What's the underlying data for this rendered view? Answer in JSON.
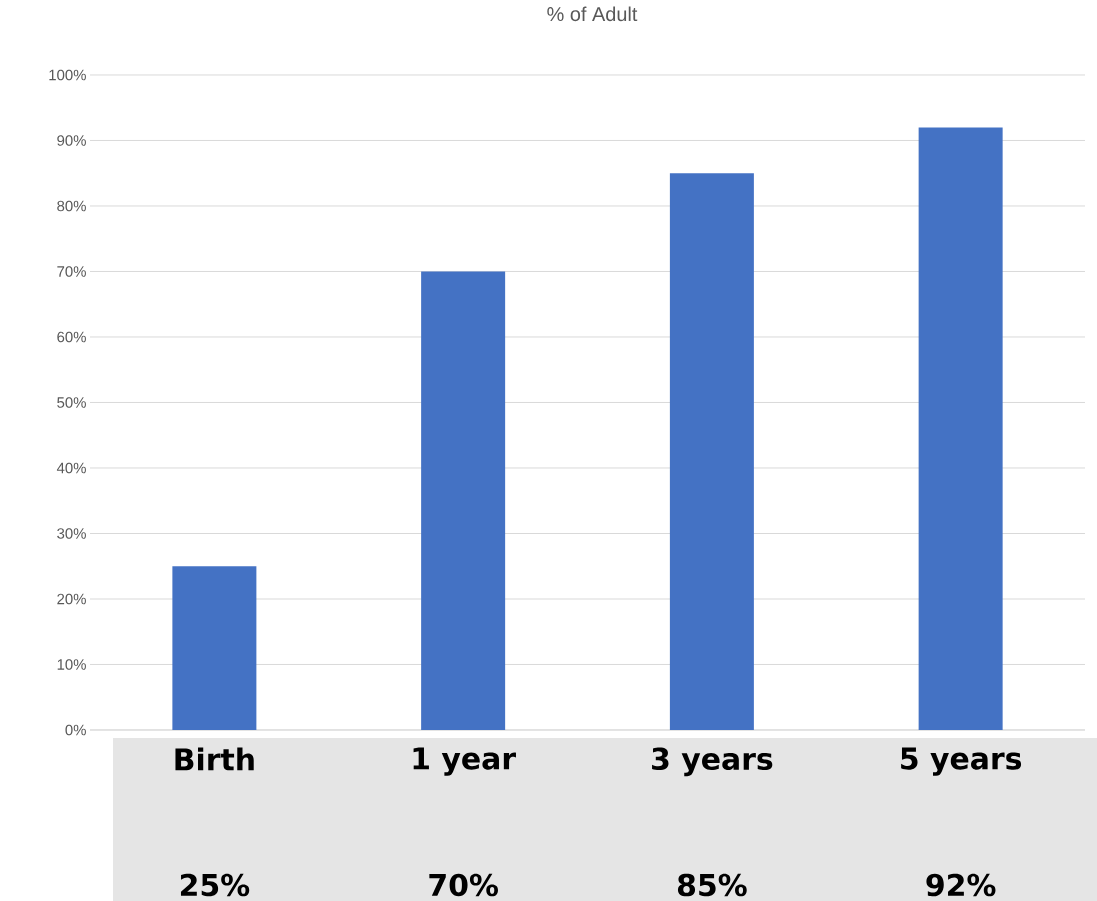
{
  "chart_data": {
    "type": "bar",
    "title": "% of Adult",
    "categories": [
      "Birth",
      "1 year",
      "3 years",
      "5 years"
    ],
    "values": [
      25,
      70,
      85,
      92
    ],
    "color": "#4472c4",
    "value_labels": [
      "25%",
      "70%",
      "85%",
      "92%"
    ],
    "ylim": [
      0,
      100
    ],
    "yticks": [
      {
        "value": 0,
        "label": "0%"
      },
      {
        "value": 10,
        "label": "10%"
      },
      {
        "value": 20,
        "label": "20%"
      },
      {
        "value": 30,
        "label": "30%"
      },
      {
        "value": 40,
        "label": "40%"
      },
      {
        "value": 50,
        "label": "50%"
      },
      {
        "value": 60,
        "label": "60%"
      },
      {
        "value": 70,
        "label": "70%"
      },
      {
        "value": 80,
        "label": "80%"
      },
      {
        "value": 90,
        "label": "90%"
      },
      {
        "value": 100,
        "label": "100%"
      }
    ],
    "grid": "y"
  }
}
